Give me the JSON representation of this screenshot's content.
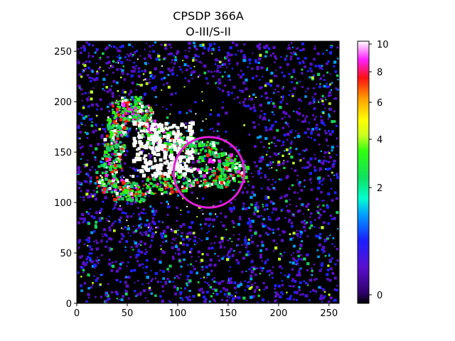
{
  "title": "CPSDP 366A",
  "subtitle": "O-III/S-II",
  "axes": {
    "x_ticks": [
      "0",
      "50",
      "100",
      "150",
      "200",
      "250"
    ],
    "y_ticks": [
      "0",
      "50",
      "100",
      "150",
      "200",
      "250"
    ],
    "x_range": [
      0,
      260
    ],
    "y_range": [
      0,
      260
    ]
  },
  "colorbar": {
    "ticks": [
      "0",
      "2",
      "4",
      "6",
      "8",
      "10"
    ],
    "colormap": "gist_ncar-like (black-purple-blue-cyan-green-yellow-red-pink-white)"
  },
  "overlay": {
    "shape": "circle",
    "color": "#e020d8",
    "center": [
      131,
      130
    ],
    "radius": 35
  },
  "image": {
    "description_colors": {
      "background": "#000000",
      "low": "#5a10c8",
      "mid": "#18d060",
      "high": "#ff2010",
      "saturated": "#ffffff"
    }
  }
}
